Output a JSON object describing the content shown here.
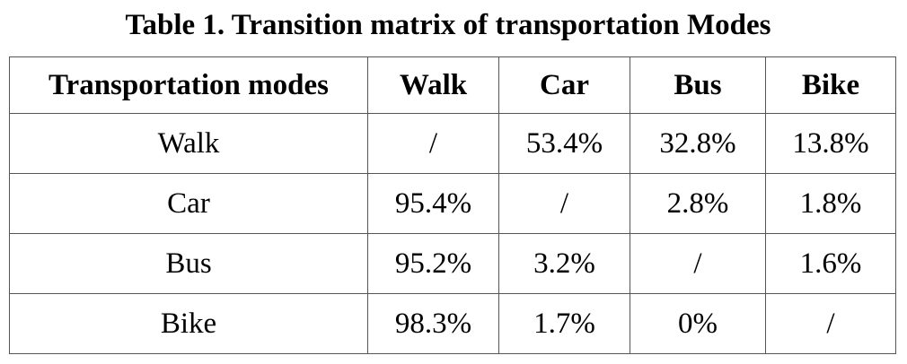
{
  "caption": "Table 1. Transition matrix of transportation Modes",
  "table": {
    "headers": [
      "Transportation modes",
      "Walk",
      "Car",
      "Bus",
      "Bike"
    ],
    "rows": [
      {
        "mode": "Walk",
        "cells": [
          "/",
          "53.4%",
          "32.8%",
          "13.8%"
        ]
      },
      {
        "mode": "Car",
        "cells": [
          "95.4%",
          "/",
          "2.8%",
          "1.8%"
        ]
      },
      {
        "mode": "Bus",
        "cells": [
          "95.2%",
          "3.2%",
          "/",
          "1.6%"
        ]
      },
      {
        "mode": "Bike",
        "cells": [
          "98.3%",
          "1.7%",
          "0%",
          "/"
        ]
      }
    ]
  }
}
